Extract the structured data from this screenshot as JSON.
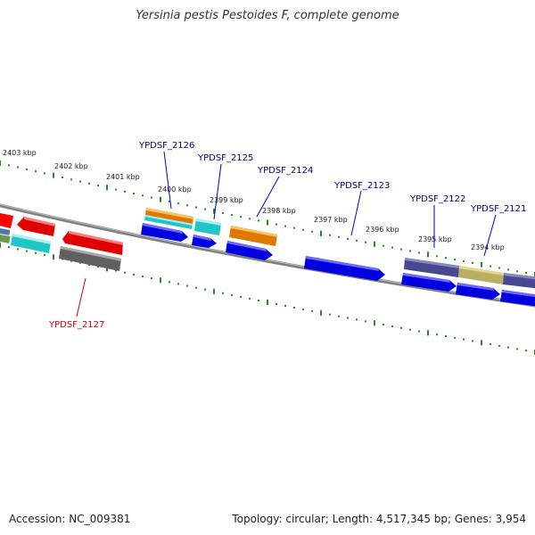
{
  "title": "Yersinia pestis Pestoides F, complete genome",
  "footer": {
    "accession": "Accession: NC_009381",
    "topology": "Topology: circular; Length: 4,517,345 bp; Genes: 3,954"
  },
  "scale_labels": [
    "2403 kbp",
    "2402 kbp",
    "2401 kbp",
    "2400 kbp",
    "2399 kbp",
    "2398 kbp",
    "2397 kbp",
    "2396 kbp",
    "2395 kbp",
    "2394 kbp"
  ],
  "gene_labels": [
    {
      "text": "YPDSF_2126",
      "color": "#00008b"
    },
    {
      "text": "YPDSF_2125",
      "color": "#00008b"
    },
    {
      "text": "YPDSF_2124",
      "color": "#00008b"
    },
    {
      "text": "YPDSF_2123",
      "color": "#00008b"
    },
    {
      "text": "YPDSF_2122",
      "color": "#00008b"
    },
    {
      "text": "YPDSF_2121",
      "color": "#00008b"
    },
    {
      "text": "YPDSF_2127",
      "color": "#cc0000"
    }
  ],
  "colors": {
    "backbone": "#808080",
    "tick": "#228b22",
    "red": "#ff0000",
    "cyan": "#20c5c5",
    "blue": "#0000ff",
    "orange": "#ff8c00",
    "gray": "#707070",
    "purple": "#484890",
    "khaki": "#b8b060"
  }
}
